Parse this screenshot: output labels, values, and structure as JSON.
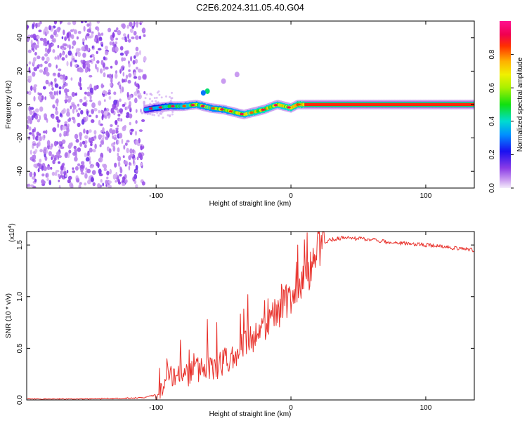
{
  "title": "C2E6.2024.311.05.40.G04",
  "chart_data": [
    {
      "type": "heatmap",
      "name": "spectrogram",
      "xlabel": "Height of straight line (km)",
      "ylabel": "Frequency (Hz)",
      "xlim": [
        -196,
        136
      ],
      "ylim": [
        -50,
        50
      ],
      "xticks": [
        -100,
        0,
        100
      ],
      "xtick_labels": [
        "-100",
        "0",
        "100"
      ],
      "yticks": [
        -40,
        -20,
        0,
        20,
        40
      ],
      "ytick_labels": [
        "-40",
        "-20",
        "0",
        "20",
        "40"
      ],
      "colorbar": {
        "label": "Normalized spectral amplitude",
        "range": [
          0,
          1
        ],
        "ticks": [
          0.0,
          0.2,
          0.4,
          0.6,
          0.8
        ],
        "tick_labels": [
          "0.0",
          "0.2",
          "0.4",
          "0.6",
          "0.8"
        ]
      },
      "noise_region_x": [
        -196,
        -108
      ],
      "signal_track": {
        "x": [
          -108,
          -100,
          -90,
          -80,
          -70,
          -60,
          -50,
          -40,
          -35,
          -30,
          -20,
          -10,
          0,
          5,
          10,
          20,
          40,
          60,
          80,
          100,
          120,
          136
        ],
        "frequency": [
          -3,
          -2,
          -1,
          -1,
          0,
          -2,
          -3,
          -5,
          -6,
          -5,
          -3,
          0,
          -2,
          0,
          0,
          0,
          0,
          0,
          0,
          0,
          0,
          0
        ],
        "amplitude": [
          0.35,
          0.5,
          0.6,
          0.7,
          0.75,
          0.7,
          0.7,
          0.75,
          0.8,
          0.85,
          0.9,
          0.85,
          0.9,
          0.95,
          1.0,
          1.0,
          1.0,
          1.0,
          1.0,
          1.0,
          1.0,
          1.0
        ]
      },
      "outlier_points": [
        {
          "x": -62,
          "frequency": 8,
          "amplitude": 0.45
        },
        {
          "x": -65,
          "frequency": 7,
          "amplitude": 0.3
        },
        {
          "x": -40,
          "frequency": 18,
          "amplitude": 0.05
        },
        {
          "x": -50,
          "frequency": 14,
          "amplitude": 0.05
        }
      ]
    },
    {
      "type": "line",
      "name": "snr",
      "xlabel": "Height of straight line (km)",
      "ylabel": "SNR (10 * v/v)",
      "y_scale_label": "(x10^4)",
      "y_scale_base": "(x10",
      "y_scale_exp": "4",
      "y_scale_close": ")",
      "xlim": [
        -196,
        136
      ],
      "ylim": [
        0,
        1.63
      ],
      "xticks": [
        -100,
        0,
        100
      ],
      "xtick_labels": [
        "-100",
        "0",
        "100"
      ],
      "yticks": [
        0,
        0.5,
        1.0,
        1.5
      ],
      "ytick_labels": [
        "0.0",
        "0.5",
        "1.0",
        "1.5"
      ],
      "series": [
        {
          "name": "SNR",
          "color": "#e8302a",
          "x": [
            -196,
            -150,
            -110,
            -100,
            -95,
            -90,
            -85,
            -80,
            -75,
            -70,
            -65,
            -60,
            -55,
            -50,
            -45,
            -40,
            -35,
            -30,
            -25,
            -20,
            -15,
            -10,
            -5,
            0,
            5,
            10,
            15,
            20,
            25,
            30,
            40,
            50,
            60,
            70,
            80,
            90,
            100,
            110,
            120,
            136
          ],
          "y": [
            0.01,
            0.01,
            0.02,
            0.05,
            0.12,
            0.22,
            0.25,
            0.22,
            0.25,
            0.3,
            0.28,
            0.3,
            0.32,
            0.38,
            0.4,
            0.45,
            0.52,
            0.58,
            0.62,
            0.7,
            0.78,
            0.85,
            0.92,
            1.0,
            1.08,
            1.18,
            1.25,
            1.48,
            1.53,
            1.55,
            1.57,
            1.56,
            1.55,
            1.53,
            1.52,
            1.51,
            1.5,
            1.49,
            1.47,
            1.45
          ]
        }
      ],
      "spikes": [
        {
          "x": -92,
          "y": 0.4
        },
        {
          "x": -82,
          "y": 0.58
        },
        {
          "x": -72,
          "y": 0.45
        },
        {
          "x": -62,
          "y": 0.78
        },
        {
          "x": -55,
          "y": 0.75
        },
        {
          "x": -32,
          "y": 1.02
        },
        {
          "x": -17,
          "y": 0.98
        },
        {
          "x": -7,
          "y": 1.12
        },
        {
          "x": 5,
          "y": 1.5
        },
        {
          "x": 10,
          "y": 1.55
        },
        {
          "x": 20,
          "y": 1.63
        }
      ]
    }
  ]
}
